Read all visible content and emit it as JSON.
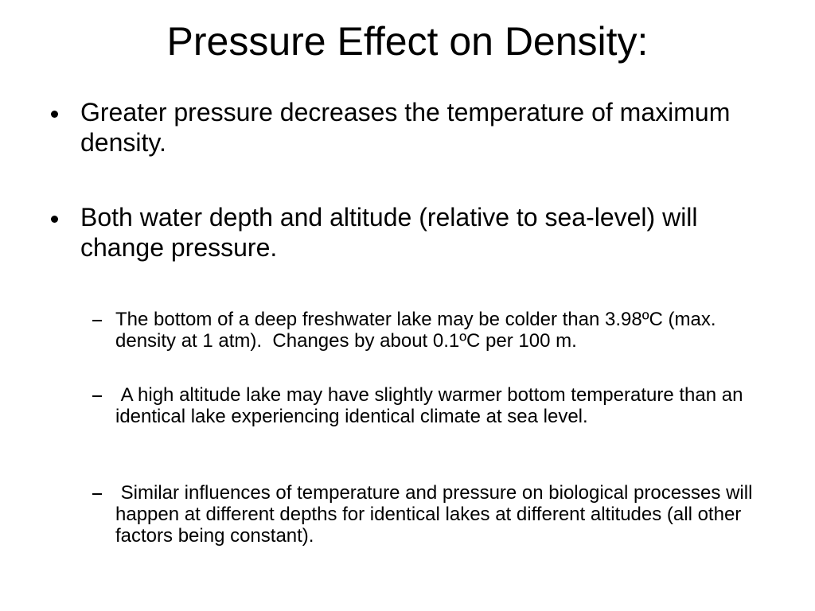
{
  "title": "Pressure Effect on Density:",
  "bullets": [
    {
      "text": "Greater pressure decreases the temperature of maximum density."
    },
    {
      "text": "Both water depth and altitude (relative to sea-level) will change pressure.",
      "sub_bullets": [
        "The bottom of a deep freshwater lake may be colder than 3.98ºC (max. density at 1 atm).  Changes by about 0.1ºC per 100 m.",
        " A high altitude lake may have slightly warmer bottom temperature than an identical lake experiencing identical climate at sea level.",
        " Similar influences of temperature and pressure on biological processes will happen at different depths for identical lakes at different altitudes (all other factors being constant)."
      ]
    }
  ]
}
